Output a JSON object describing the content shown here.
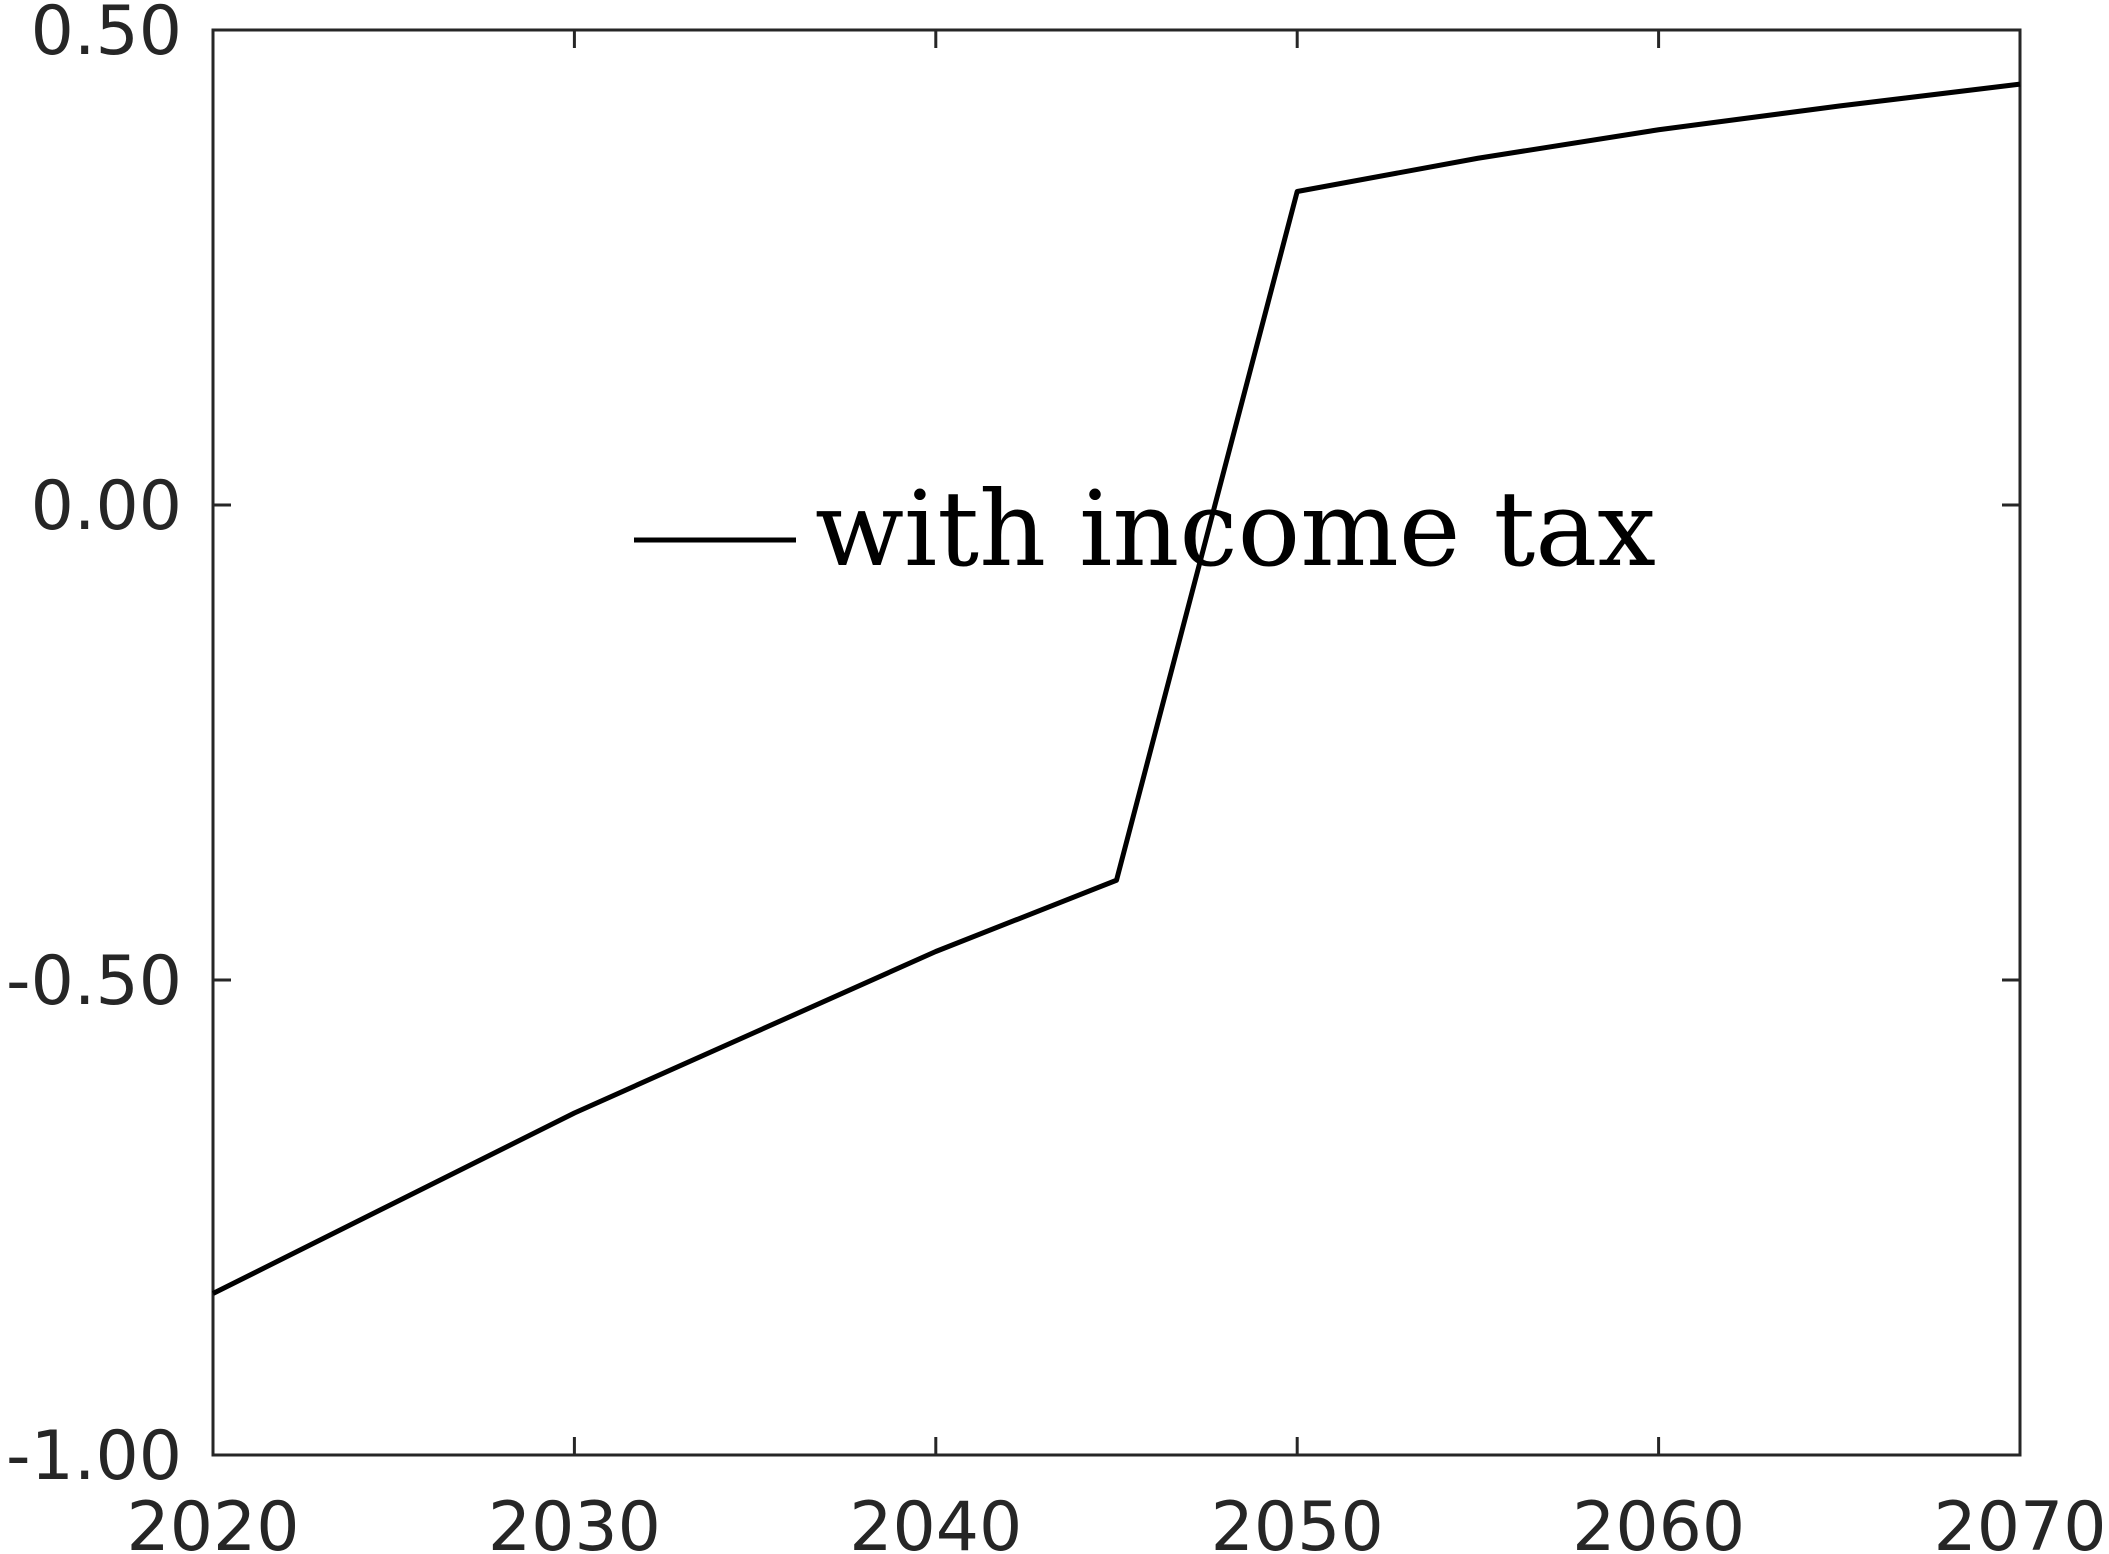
{
  "chart_data": {
    "type": "line",
    "title": "",
    "xlabel": "",
    "ylabel": "",
    "xlim": [
      2020,
      2070
    ],
    "ylim": [
      -1.0,
      0.5
    ],
    "x_ticks": [
      2020,
      2030,
      2040,
      2050,
      2060,
      2070
    ],
    "x_tick_labels": [
      "2020",
      "2030",
      "2040",
      "2050",
      "2060",
      "2070"
    ],
    "y_ticks": [
      -1.0,
      -0.5,
      0.0,
      0.5
    ],
    "y_tick_labels": [
      "-1.00",
      "-0.50",
      "0.00",
      "0.50"
    ],
    "grid": false,
    "legend_position": "center",
    "line_color": "#000000",
    "axis_color": "#262626",
    "series": [
      {
        "name": "with income tax",
        "x": [
          2020,
          2025,
          2030,
          2035,
          2040,
          2045,
          2050,
          2055,
          2060,
          2065,
          2070
        ],
        "y": [
          -0.83,
          -0.735,
          -0.64,
          -0.555,
          -0.47,
          -0.395,
          0.33,
          0.365,
          0.395,
          0.42,
          0.443
        ]
      }
    ]
  }
}
